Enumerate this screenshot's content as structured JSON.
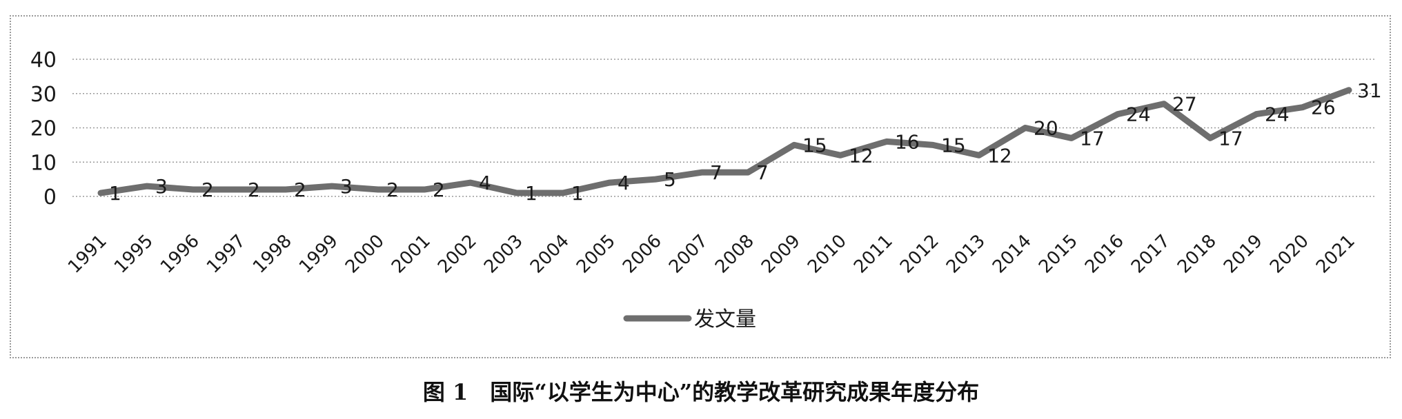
{
  "caption": "图 1　国际“以学生为中心”的教学改革研究成果年度分布",
  "chart_data": {
    "type": "line",
    "title": "",
    "xlabel": "",
    "ylabel": "",
    "ylim": [
      0,
      40
    ],
    "yticks": [
      0,
      10,
      20,
      30,
      40
    ],
    "grid": true,
    "legend_position": "bottom",
    "categories": [
      "1991",
      "1995",
      "1996",
      "1997",
      "1998",
      "1999",
      "2000",
      "2001",
      "2002",
      "2003",
      "2004",
      "2005",
      "2006",
      "2007",
      "2008",
      "2009",
      "2010",
      "2011",
      "2012",
      "2013",
      "2014",
      "2015",
      "2016",
      "2017",
      "2018",
      "2019",
      "2020",
      "2021"
    ],
    "series": [
      {
        "name": "发文量",
        "color": "#6e6e6e",
        "values": [
          1,
          3,
          2,
          2,
          2,
          3,
          2,
          2,
          4,
          1,
          1,
          4,
          5,
          7,
          7,
          15,
          12,
          16,
          15,
          12,
          20,
          17,
          24,
          27,
          17,
          24,
          26,
          31
        ]
      }
    ]
  }
}
